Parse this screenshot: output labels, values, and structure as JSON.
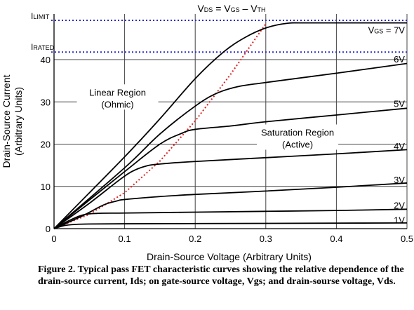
{
  "caption": "Figure 2. Typical pass FET characteristic curves showing the relative dependence of the drain-source current, Ids; on gate-source voltage, Vgs; and drain-sourse voltage, Vds.",
  "chart_data": {
    "type": "line",
    "title": {
      "main": "V",
      "sub1": "DS",
      "mid": " = V",
      "sub2": "GS",
      "end": " – V",
      "sub3": "TH"
    },
    "xlabel": "Drain-Source Voltage (Arbitrary Units)",
    "ylabel": [
      "Drain-Source Current",
      "(Arbitrary Units)"
    ],
    "xlim": [
      0,
      0.5
    ],
    "ylim": [
      0,
      49
    ],
    "x_ticks": [
      0,
      0.1,
      0.2,
      0.3,
      0.4,
      0.5
    ],
    "x_tick_labels": [
      "0",
      "0.1",
      "0.2",
      "0.3",
      "0.4",
      "0.5"
    ],
    "y_ticks": [
      0,
      10,
      20,
      30,
      40
    ],
    "y_tick_labels": [
      "0",
      "10",
      "20",
      "30",
      "40"
    ],
    "grid": true,
    "limit_lines": [
      {
        "name_main": "I",
        "name_sub": "LIMIT",
        "y": 49.3,
        "color": "#2b2bcc"
      },
      {
        "name_main": "I",
        "name_sub": "RATED",
        "y": 41.8,
        "color": "#2b2bcc"
      }
    ],
    "boundary": {
      "color": "#e02020",
      "points": [
        [
          0,
          0
        ],
        [
          0.05,
          3.4
        ],
        [
          0.1,
          8.5
        ],
        [
          0.15,
          16.0
        ],
        [
          0.2,
          25.5
        ],
        [
          0.25,
          36.5
        ],
        [
          0.3,
          48.5
        ]
      ]
    },
    "region_labels": [
      {
        "lines": [
          "Linear Region",
          "(Ohmic)"
        ],
        "x": 0.09,
        "y": 31.5
      },
      {
        "lines": [
          "Saturation Region",
          "(Active)"
        ],
        "x": 0.345,
        "y": 22.0
      }
    ],
    "series": [
      {
        "label": "1V",
        "values": [
          [
            0,
            0
          ],
          [
            0.015,
            0.75
          ],
          [
            0.03,
            1.0
          ],
          [
            0.05,
            1.1
          ],
          [
            0.1,
            1.15
          ],
          [
            0.2,
            1.2
          ],
          [
            0.3,
            1.25
          ],
          [
            0.4,
            1.3
          ],
          [
            0.5,
            1.35
          ]
        ]
      },
      {
        "label": "2V",
        "values": [
          [
            0,
            0
          ],
          [
            0.02,
            1.8
          ],
          [
            0.04,
            3.2
          ],
          [
            0.06,
            3.6
          ],
          [
            0.1,
            3.7
          ],
          [
            0.2,
            3.9
          ],
          [
            0.3,
            4.1
          ],
          [
            0.4,
            4.3
          ],
          [
            0.5,
            4.6
          ]
        ]
      },
      {
        "label": "3V",
        "values": [
          [
            0,
            0
          ],
          [
            0.04,
            3.0
          ],
          [
            0.07,
            5.6
          ],
          [
            0.09,
            6.6
          ],
          [
            0.1,
            6.9
          ],
          [
            0.15,
            7.6
          ],
          [
            0.2,
            8.1
          ],
          [
            0.3,
            8.9
          ],
          [
            0.4,
            9.8
          ],
          [
            0.5,
            10.8
          ]
        ]
      },
      {
        "label": "4V",
        "values": [
          [
            0,
            0
          ],
          [
            0.05,
            6.0
          ],
          [
            0.09,
            11.2
          ],
          [
            0.11,
            13.5
          ],
          [
            0.13,
            14.8
          ],
          [
            0.15,
            15.3
          ],
          [
            0.2,
            15.9
          ],
          [
            0.3,
            16.8
          ],
          [
            0.4,
            17.7
          ],
          [
            0.5,
            18.7
          ]
        ]
      },
      {
        "label": "5V",
        "values": [
          [
            0,
            0
          ],
          [
            0.1,
            13.5
          ],
          [
            0.15,
            20.0
          ],
          [
            0.18,
            22.5
          ],
          [
            0.2,
            23.5
          ],
          [
            0.25,
            24.3
          ],
          [
            0.3,
            25.3
          ],
          [
            0.4,
            26.9
          ],
          [
            0.5,
            28.5
          ]
        ]
      },
      {
        "label": "6V",
        "values": [
          [
            0,
            0
          ],
          [
            0.1,
            14.4
          ],
          [
            0.15,
            22.4
          ],
          [
            0.2,
            29.0
          ],
          [
            0.23,
            32.0
          ],
          [
            0.26,
            33.6
          ],
          [
            0.3,
            34.6
          ],
          [
            0.4,
            36.8
          ],
          [
            0.5,
            39.1
          ]
        ]
      },
      {
        "label": "7V",
        "values": [
          [
            0,
            0
          ],
          [
            0.1,
            17.0
          ],
          [
            0.15,
            26.0
          ],
          [
            0.2,
            35.5
          ],
          [
            0.24,
            41.8
          ],
          [
            0.27,
            45.2
          ],
          [
            0.3,
            47.5
          ],
          [
            0.33,
            48.6
          ],
          [
            0.36,
            48.7
          ],
          [
            0.5,
            48.7
          ]
        ]
      }
    ],
    "series_label_positions": [
      {
        "label": "1V",
        "x": 0.497,
        "y": 2.1
      },
      {
        "label": "2V",
        "x": 0.497,
        "y": 5.6
      },
      {
        "label": "3V",
        "x": 0.497,
        "y": 11.6
      },
      {
        "label": "4V",
        "x": 0.497,
        "y": 19.6
      },
      {
        "label": "5V",
        "x": 0.497,
        "y": 29.6
      },
      {
        "label": "6V",
        "x": 0.497,
        "y": 40.2
      },
      {
        "label": "7V",
        "x": 0.497,
        "y": 47.2
      }
    ],
    "top_label": {
      "main": "V",
      "sub": "GS",
      "rest": " = 7V"
    }
  }
}
